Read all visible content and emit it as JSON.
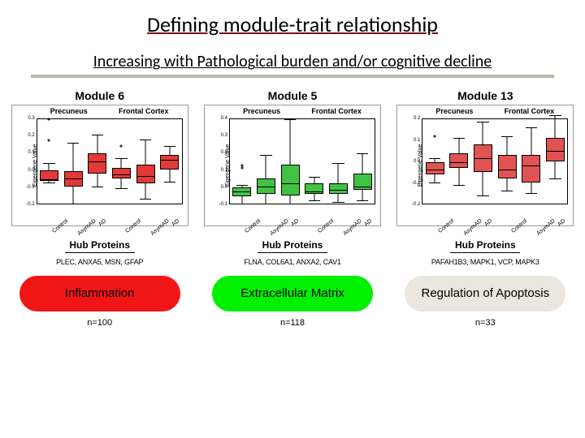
{
  "title": "Defining module-trait relationship",
  "subtitle": "Increasing with Pathological burden and/or cognitive decline",
  "hub_label": "Hub Proteins",
  "ylabel": "Eigengene Value",
  "regions": [
    "Precuneus",
    "Frontal Cortex"
  ],
  "xcats": [
    "Control",
    "AsymAD",
    "AD",
    "Control",
    "AsymAD",
    "AD"
  ],
  "modules": [
    {
      "name": "Module 6",
      "proteins": "PLEC, ANXA5, MSN, GFAP",
      "pill_label": "Inflammation",
      "pill_bg": "#f01616",
      "pill_color": "#000000",
      "n": "n=100",
      "box_fill": "#e33939",
      "ylim": [
        -0.2,
        0.3
      ],
      "yticks": [
        "0.3",
        "0.2",
        "0.1",
        "0.0",
        "-0.1",
        "-0.2"
      ],
      "boxes": [
        {
          "q1": -0.065,
          "q3": -0.005,
          "med": -0.06,
          "lw": -0.075,
          "uw": 0.04,
          "outliers": [
            0.3,
            0.175
          ]
        },
        {
          "q1": -0.1,
          "q3": -0.01,
          "med": -0.05,
          "lw": -0.2,
          "uw": 0.16,
          "outliers": []
        },
        {
          "q1": -0.02,
          "q3": 0.1,
          "med": 0.05,
          "lw": -0.1,
          "uw": 0.21,
          "outliers": []
        },
        {
          "q1": -0.05,
          "q3": 0.01,
          "med": -0.03,
          "lw": -0.11,
          "uw": 0.07,
          "outliers": [
            0.14
          ]
        },
        {
          "q1": -0.08,
          "q3": 0.03,
          "med": -0.04,
          "lw": -0.17,
          "uw": 0.18,
          "outliers": []
        },
        {
          "q1": 0.0,
          "q3": 0.09,
          "med": 0.06,
          "lw": -0.07,
          "uw": 0.14,
          "outliers": []
        }
      ]
    },
    {
      "name": "Module 5",
      "proteins": "FLNA, COL6A1, ANXA2, CAV1",
      "pill_label": "Extracellular Matrix",
      "pill_bg": "#00f000",
      "pill_color": "#000000",
      "n": "n=118",
      "box_fill": "#42c242",
      "ylim": [
        -0.1,
        0.4
      ],
      "yticks": [
        "0.4",
        "0.3",
        "0.2",
        "0.1",
        "0.0",
        "-0.1"
      ],
      "boxes": [
        {
          "q1": -0.055,
          "q3": -0.005,
          "med": -0.03,
          "lw": -0.1,
          "uw": 0.01,
          "outliers": [
            0.11,
            0.126
          ]
        },
        {
          "q1": -0.04,
          "q3": 0.05,
          "med": 0.0,
          "lw": -0.1,
          "uw": 0.19,
          "outliers": []
        },
        {
          "q1": -0.05,
          "q3": 0.13,
          "med": 0.02,
          "lw": -0.1,
          "uw": 0.4,
          "outliers": []
        },
        {
          "q1": -0.04,
          "q3": 0.02,
          "med": -0.03,
          "lw": -0.08,
          "uw": 0.06,
          "outliers": []
        },
        {
          "q1": -0.04,
          "q3": 0.02,
          "med": -0.02,
          "lw": -0.09,
          "uw": 0.14,
          "outliers": []
        },
        {
          "q1": -0.02,
          "q3": 0.08,
          "med": 0.0,
          "lw": -0.08,
          "uw": 0.2,
          "outliers": []
        }
      ]
    },
    {
      "name": "Module 13",
      "proteins": "PAFAH1B3, MAPK1, VCP, MAPK3",
      "pill_label": "Regulation of Apoptosis",
      "pill_bg": "#ebe7de",
      "pill_color": "#000000",
      "n": "n=33",
      "box_fill": "#e05353",
      "ylim": [
        -0.2,
        0.2
      ],
      "yticks": [
        "0.2",
        "0.1",
        "0.0",
        "-0.1",
        "-0.2"
      ],
      "boxes": [
        {
          "q1": -0.06,
          "q3": -0.005,
          "med": -0.04,
          "lw": -0.1,
          "uw": 0.015,
          "outliers": [
            0.12
          ]
        },
        {
          "q1": -0.03,
          "q3": 0.04,
          "med": -0.005,
          "lw": -0.11,
          "uw": 0.11,
          "outliers": []
        },
        {
          "q1": -0.05,
          "q3": 0.08,
          "med": 0.015,
          "lw": -0.16,
          "uw": 0.19,
          "outliers": []
        },
        {
          "q1": -0.08,
          "q3": 0.03,
          "med": -0.04,
          "lw": -0.14,
          "uw": 0.12,
          "outliers": []
        },
        {
          "q1": -0.1,
          "q3": 0.03,
          "med": -0.02,
          "lw": -0.15,
          "uw": 0.16,
          "outliers": []
        },
        {
          "q1": 0.0,
          "q3": 0.11,
          "med": 0.05,
          "lw": -0.08,
          "uw": 0.22,
          "outliers": []
        }
      ]
    }
  ]
}
